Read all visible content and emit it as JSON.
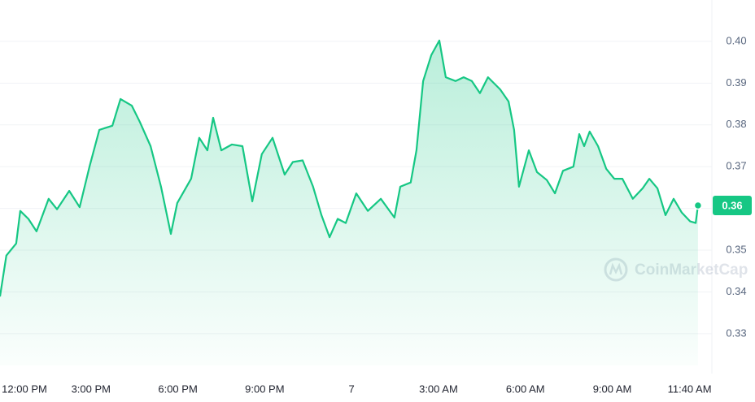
{
  "chart_data": {
    "type": "line",
    "x": [
      -0.14,
      0.08,
      0.42,
      0.56,
      0.84,
      1.12,
      1.54,
      1.83,
      2.25,
      2.61,
      2.95,
      3.29,
      3.74,
      4.02,
      4.41,
      4.69,
      5.06,
      5.42,
      5.76,
      5.98,
      6.46,
      6.74,
      7.02,
      7.22,
      7.5,
      7.87,
      8.23,
      8.57,
      8.9,
      9.27,
      9.69,
      9.97,
      10.31,
      10.67,
      10.96,
      11.24,
      11.52,
      11.8,
      12.16,
      12.56,
      13.01,
      13.48,
      13.68,
      14.04,
      14.24,
      14.47,
      14.75,
      15.03,
      15.25,
      15.59,
      15.87,
      16.15,
      16.43,
      16.71,
      17.13,
      17.42,
      17.61,
      17.78,
      18.12,
      18.4,
      18.74,
      19.02,
      19.3,
      19.66,
      19.86,
      20.03,
      20.22,
      20.51,
      20.79,
      21.07,
      21.35,
      21.71,
      22.05,
      22.28,
      22.56,
      22.84,
      23.12,
      23.4,
      23.69,
      23.88,
      23.96
    ],
    "series": [
      {
        "color": "#16c784",
        "values": [
          0.3389,
          0.3487,
          0.3516,
          0.3594,
          0.3575,
          0.3545,
          0.3623,
          0.3598,
          0.3642,
          0.3603,
          0.37,
          0.3788,
          0.3798,
          0.3862,
          0.3846,
          0.3807,
          0.3749,
          0.3652,
          0.3539,
          0.3613,
          0.3671,
          0.3769,
          0.3739,
          0.3817,
          0.3739,
          0.3753,
          0.3749,
          0.3617,
          0.373,
          0.3769,
          0.3681,
          0.3711,
          0.3715,
          0.3652,
          0.3584,
          0.3531,
          0.3575,
          0.3565,
          0.3636,
          0.3594,
          0.3623,
          0.3578,
          0.3652,
          0.3662,
          0.3739,
          0.3905,
          0.3967,
          0.4002,
          0.3914,
          0.3905,
          0.3914,
          0.3905,
          0.3876,
          0.3914,
          0.3885,
          0.3856,
          0.3788,
          0.3652,
          0.3739,
          0.3687,
          0.3668,
          0.3636,
          0.369,
          0.37,
          0.3778,
          0.3749,
          0.3784,
          0.3749,
          0.3695,
          0.3671,
          0.3671,
          0.3623,
          0.3648,
          0.3671,
          0.3648,
          0.3584,
          0.3623,
          0.359,
          0.3569,
          0.3565,
          0.3607
        ]
      }
    ],
    "xlim": [
      -0.14,
      24.44
    ],
    "xticks": [
      {
        "value": 0,
        "label": "12:00 PM"
      },
      {
        "value": 3,
        "label": "3:00 PM"
      },
      {
        "value": 6,
        "label": "6:00 PM"
      },
      {
        "value": 9,
        "label": "9:00 PM"
      },
      {
        "value": 12,
        "label": "7"
      },
      {
        "value": 15,
        "label": "3:00 AM"
      },
      {
        "value": 18,
        "label": "6:00 AM"
      },
      {
        "value": 21,
        "label": "9:00 AM"
      },
      {
        "value": 23.67,
        "label": "11:40 AM"
      }
    ],
    "ylim": [
      0.3224,
      0.4099
    ],
    "yticks": [
      {
        "value": 0.33,
        "label": "0.33"
      },
      {
        "value": 0.34,
        "label": "0.34"
      },
      {
        "value": 0.35,
        "label": "0.35"
      },
      {
        "value": 0.36,
        "label": "0.36"
      },
      {
        "value": 0.37,
        "label": "0.37"
      },
      {
        "value": 0.38,
        "label": "0.38"
      },
      {
        "value": 0.39,
        "label": "0.39"
      },
      {
        "value": 0.4,
        "label": "0.40"
      }
    ],
    "grid": true,
    "current_price": {
      "value": 0.3607,
      "label": "0.36"
    },
    "watermark": "CoinMarketCap"
  }
}
